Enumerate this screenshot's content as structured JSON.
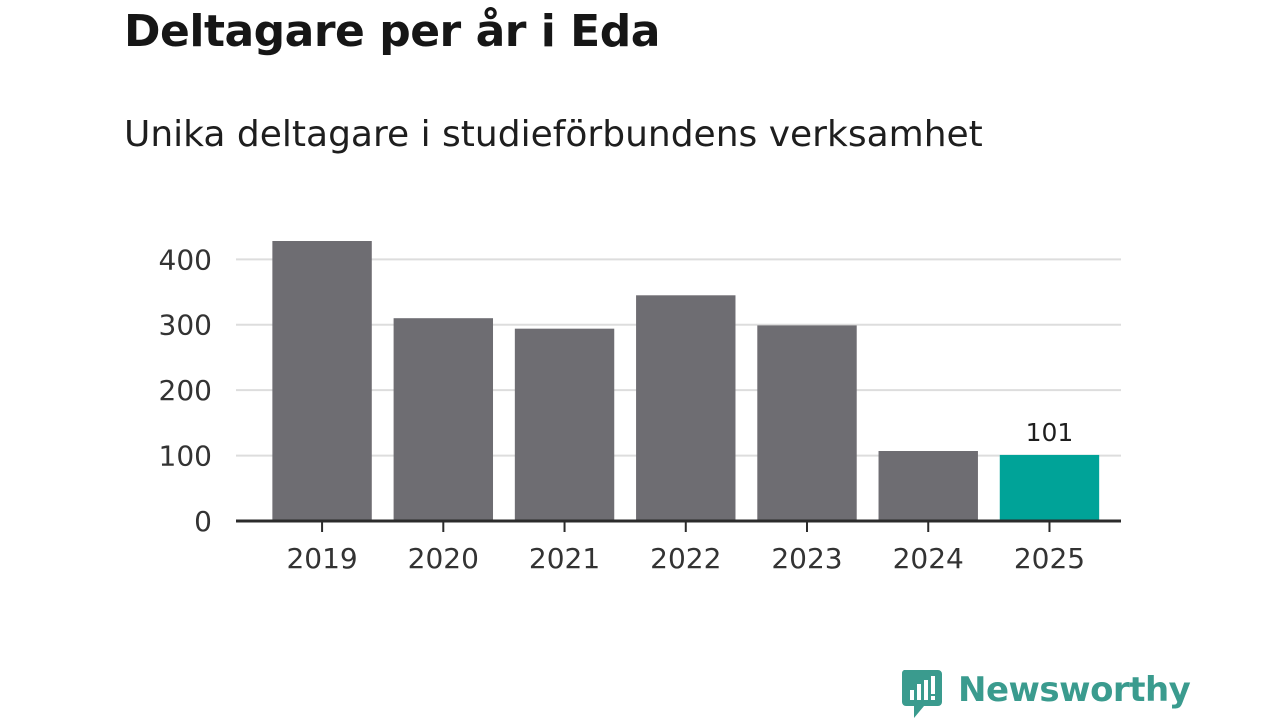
{
  "header": {
    "title": "Deltagare per år i Eda",
    "subtitle": "Unika deltagare i studieförbundens verksamhet"
  },
  "brand": {
    "name": "Newsworthy",
    "color": "#3a9b8e"
  },
  "colors": {
    "bar": "#6e6d72",
    "highlight": "#00a398",
    "grid": "#dddddd",
    "axis": "#2b2b2b"
  },
  "chart_data": {
    "type": "bar",
    "title": "Deltagare per år i Eda",
    "subtitle": "Unika deltagare i studieförbundens verksamhet",
    "xlabel": "",
    "ylabel": "",
    "categories": [
      "2019",
      "2020",
      "2021",
      "2022",
      "2023",
      "2024",
      "2025"
    ],
    "values": [
      428,
      310,
      294,
      345,
      299,
      107,
      101
    ],
    "highlight_index": 6,
    "data_labels": [
      {
        "index": 6,
        "text": "101"
      }
    ],
    "yticks": [
      0,
      100,
      200,
      300,
      400
    ],
    "ylim": [
      0,
      430
    ],
    "grid": true
  }
}
